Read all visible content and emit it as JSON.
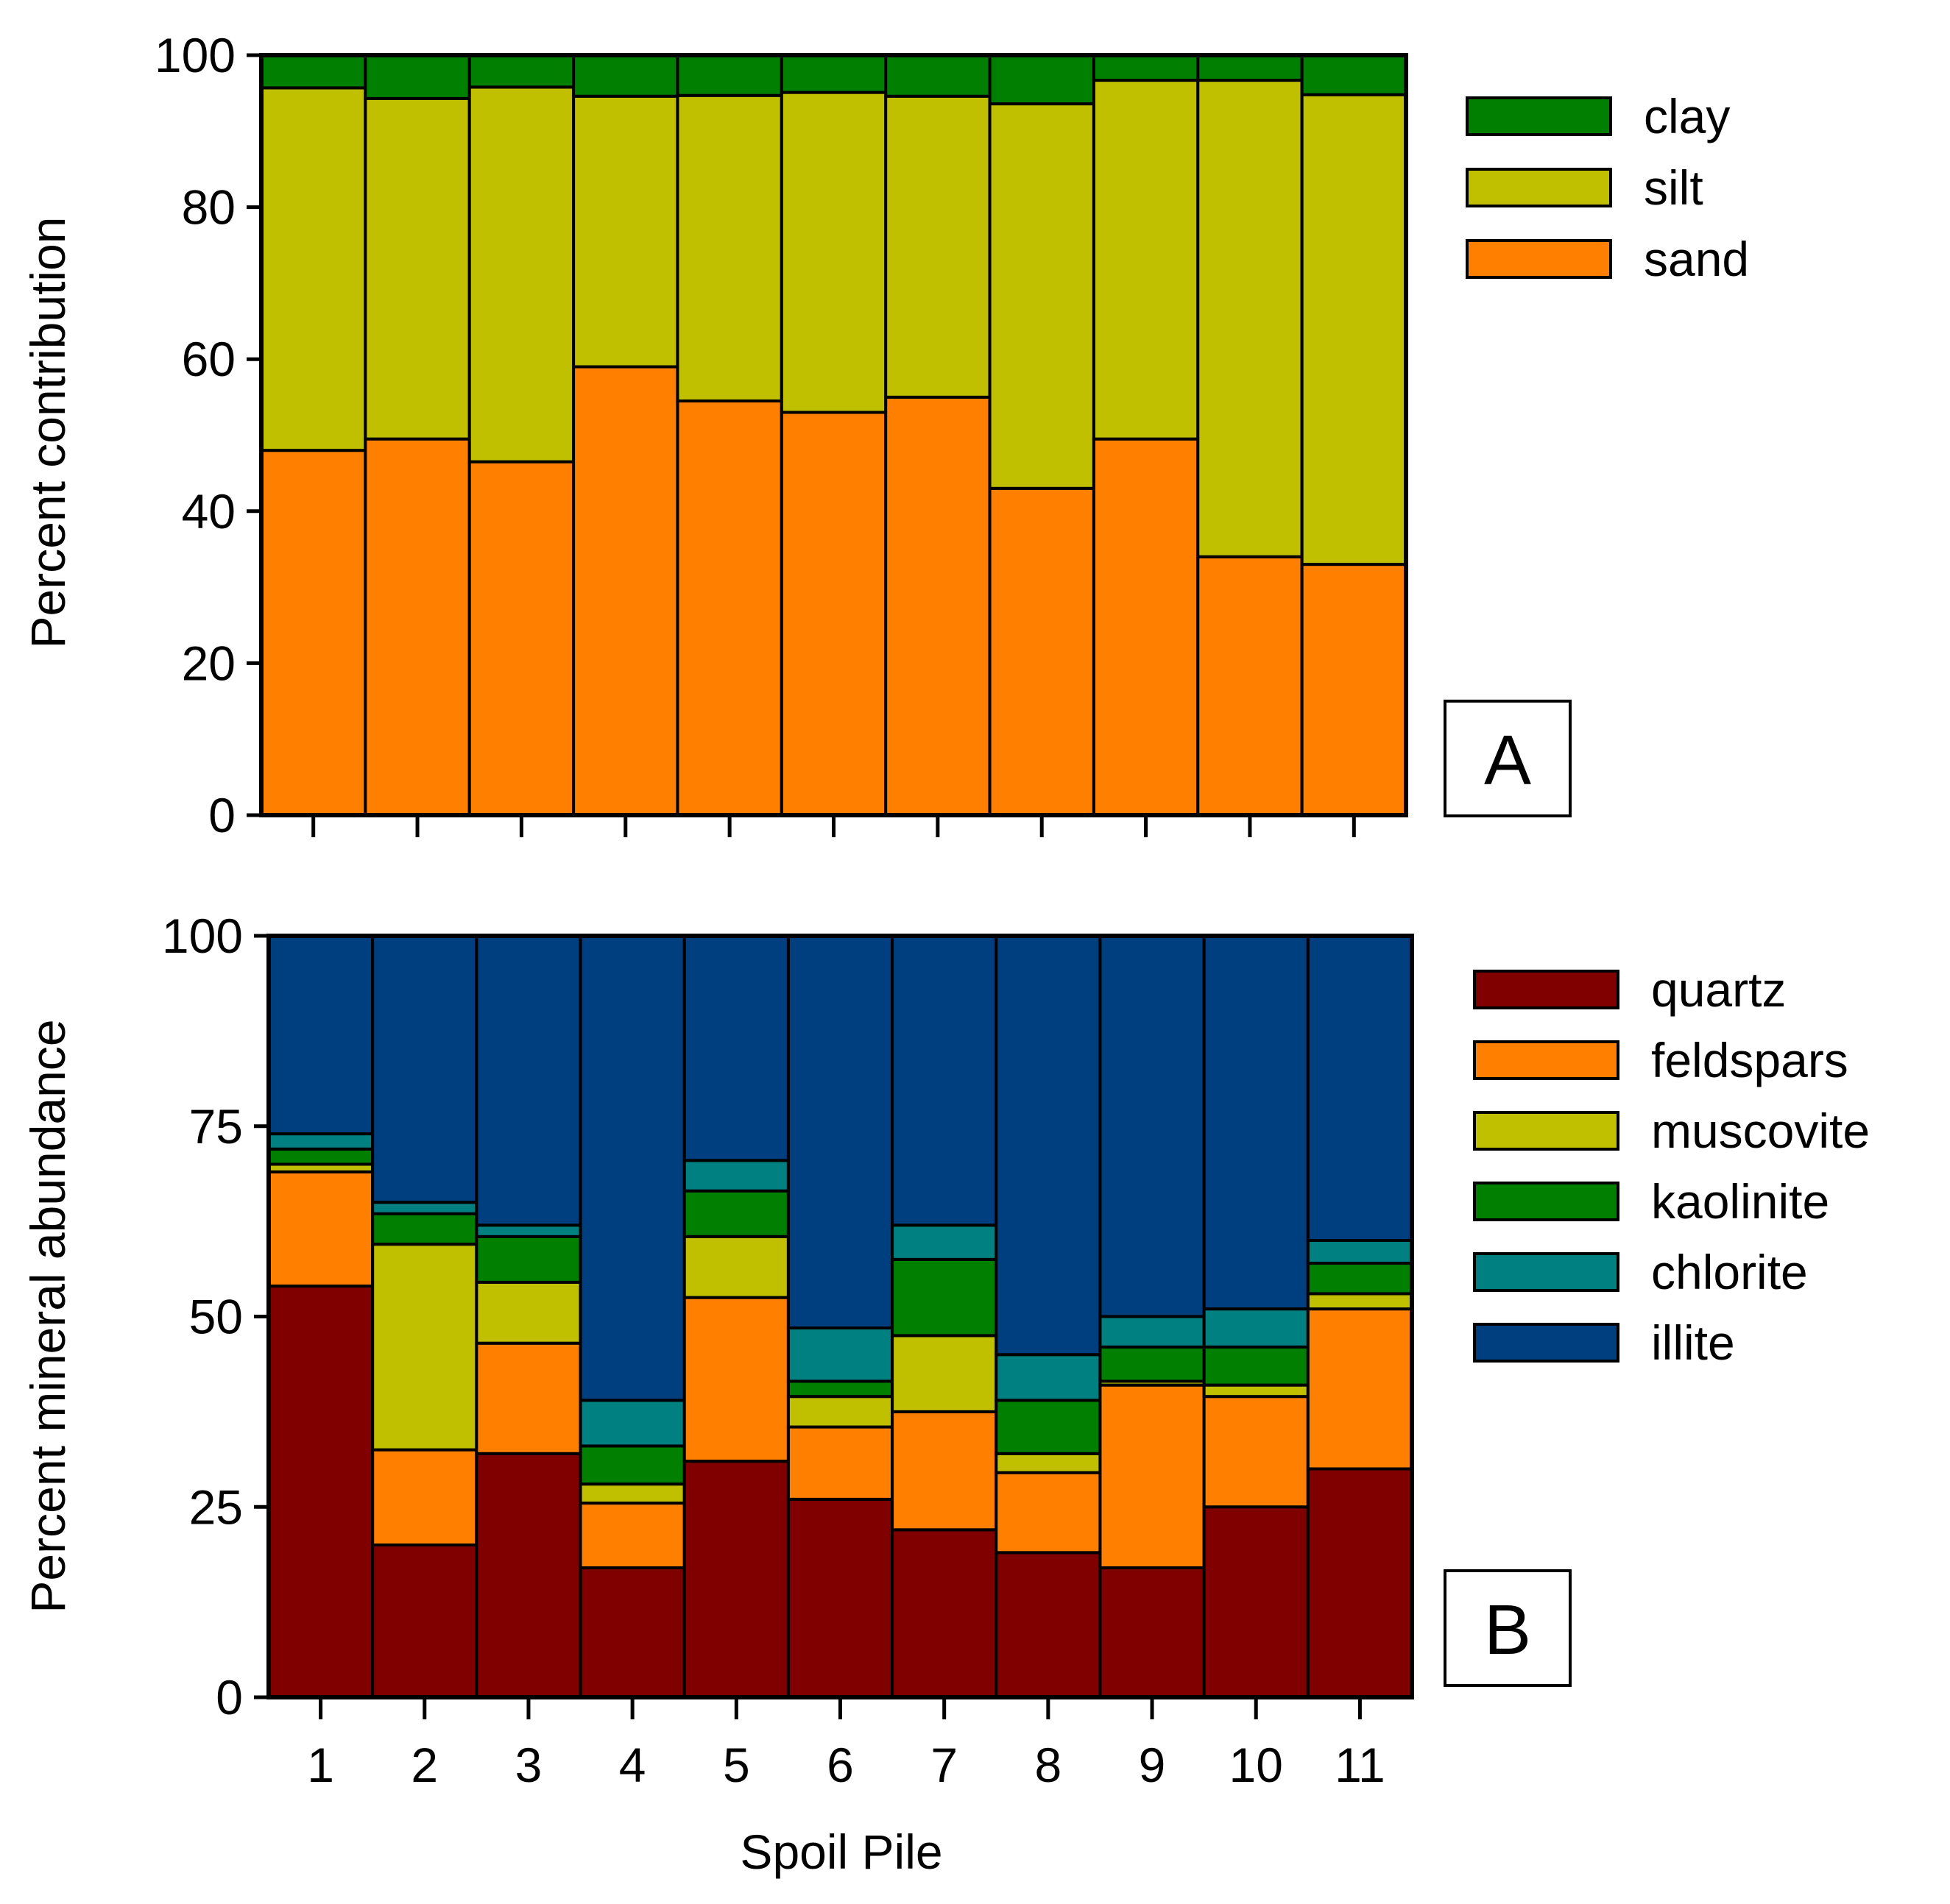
{
  "chart_data": [
    {
      "type": "bar",
      "stacked": true,
      "panel_label": "A",
      "title": "",
      "xlabel": "",
      "ylabel": "Percent contribution",
      "ylim": [
        0,
        100
      ],
      "yticks": [
        "0",
        "20",
        "40",
        "60",
        "80",
        "100"
      ],
      "categories": [
        "1",
        "2",
        "3",
        "4",
        "5",
        "6",
        "7",
        "8",
        "9",
        "10",
        "11"
      ],
      "legend_order": [
        "clay",
        "silt",
        "sand"
      ],
      "series": [
        {
          "name": "sand",
          "color": "#ff8000",
          "values": [
            48,
            49.5,
            46.5,
            59,
            54.5,
            53,
            55,
            43,
            49.5,
            34,
            33
          ]
        },
        {
          "name": "silt",
          "color": "#c0c000",
          "values": [
            47.7,
            44.8,
            49.3,
            35.6,
            40.2,
            42.1,
            39.6,
            50.6,
            47.2,
            62.7,
            61.8
          ]
        },
        {
          "name": "clay",
          "color": "#007f00",
          "values": [
            4.3,
            5.7,
            4.2,
            5.4,
            5.3,
            4.9,
            5.4,
            6.4,
            3.3,
            3.3,
            5.2
          ]
        }
      ]
    },
    {
      "type": "bar",
      "stacked": true,
      "panel_label": "B",
      "title": "",
      "xlabel": "Spoil Pile",
      "ylabel": "Percent mineral abundance",
      "ylim": [
        0,
        100
      ],
      "yticks": [
        "0",
        "25",
        "50",
        "75",
        "100"
      ],
      "categories": [
        "1",
        "2",
        "3",
        "4",
        "5",
        "6",
        "7",
        "8",
        "9",
        "10",
        "11"
      ],
      "legend_order": [
        "quartz",
        "feldspars",
        "muscovite",
        "kaolinite",
        "chlorite",
        "illite"
      ],
      "series": [
        {
          "name": "quartz",
          "color": "#800000",
          "values": [
            54,
            20,
            32,
            17,
            31,
            26,
            22,
            19,
            17,
            25,
            30
          ]
        },
        {
          "name": "feldspars",
          "color": "#ff8000",
          "values": [
            15,
            12.5,
            14.5,
            8.5,
            21.5,
            9.5,
            15.5,
            10.5,
            24,
            14.5,
            21
          ]
        },
        {
          "name": "muscovite",
          "color": "#c0c000",
          "values": [
            1,
            27,
            8,
            2.5,
            8,
            4,
            10,
            2.5,
            0.5,
            1.5,
            2
          ]
        },
        {
          "name": "kaolinite",
          "color": "#007f00",
          "values": [
            2,
            4,
            6,
            5,
            6,
            2,
            10,
            7,
            4.5,
            5,
            4
          ]
        },
        {
          "name": "chlorite",
          "color": "#008080",
          "values": [
            2,
            1.5,
            1.5,
            6,
            4,
            7,
            4.5,
            6,
            4,
            5,
            3
          ]
        },
        {
          "name": "illite",
          "color": "#003f7f",
          "values": [
            26,
            35,
            38,
            61,
            29.5,
            51.5,
            38,
            55,
            50,
            49,
            40
          ]
        }
      ]
    }
  ]
}
